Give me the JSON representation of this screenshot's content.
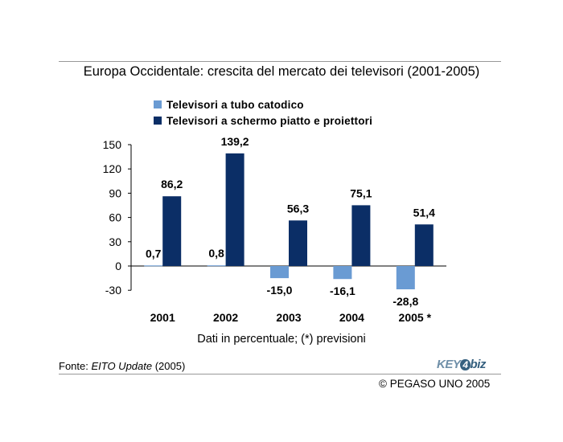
{
  "header": {
    "title": "Europa Occidentale: crescita del mercato dei televisori (2001-2005)"
  },
  "chart_data": {
    "type": "bar",
    "title": "Europa Occidentale: crescita del mercato dei televisori (2001-2005)",
    "categories": [
      "2001",
      "2002",
      "2003",
      "2004",
      "2005 *"
    ],
    "series": [
      {
        "name": "Televisori a tubo catodico",
        "values": [
          0.7,
          0.8,
          -15.0,
          -16.1,
          -28.8
        ],
        "labels": [
          "0,7",
          "0,8",
          "-15,0",
          "-16,1",
          "-28,8"
        ],
        "color": "#6a9bd3"
      },
      {
        "name": "Televisori a schermo piatto e proiettori",
        "values": [
          86.2,
          139.2,
          56.3,
          75.1,
          51.4
        ],
        "labels": [
          "86,2",
          "139,2",
          "56,3",
          "75,1",
          "51,4"
        ],
        "color": "#0b2e66"
      }
    ],
    "ylim": [
      -30,
      150
    ],
    "yticks": [
      -30,
      0,
      30,
      60,
      90,
      120,
      150
    ],
    "legend_position": "top-left",
    "grid": false
  },
  "footer": {
    "note": "Dati in percentuale; (*) previsioni",
    "source_prefix": "Fonte: ",
    "source_title": "EITO Update",
    "source_suffix": " (2005)",
    "logo_key": "KEY",
    "logo_four": "4",
    "logo_biz": "biz",
    "copyright": "© PEGASO UNO 2005"
  }
}
